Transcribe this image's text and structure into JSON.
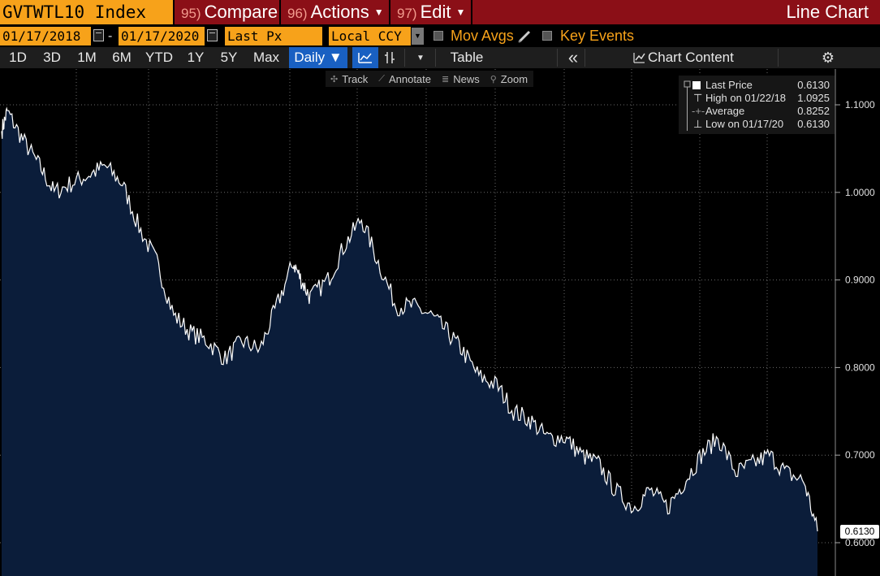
{
  "toolbar": {
    "ticker": "GVTWTL10 Index",
    "compare_num": "95)",
    "compare_label": "Compare",
    "actions_num": "96)",
    "actions_label": "Actions",
    "edit_num": "97)",
    "edit_label": "Edit",
    "title": "Line Chart"
  },
  "controls": {
    "start_date": "01/17/2018",
    "end_date": "01/17/2020",
    "date_separator": "-",
    "field": "Last Px",
    "currency": "Local CCY",
    "mov_avgs_label": "Mov Avgs",
    "key_events_label": "Key Events"
  },
  "periods": [
    "1D",
    "3D",
    "1M",
    "6M",
    "YTD",
    "1Y",
    "5Y",
    "Max"
  ],
  "frequency": "Daily ▼",
  "table_label": "Table",
  "chart_content_label": "Chart Content",
  "chart_tools": {
    "track": "Track",
    "annotate": "Annotate",
    "news": "News",
    "zoom": "Zoom"
  },
  "legend": {
    "last_label": "Last Price",
    "last_value": "0.6130",
    "high_label": "High on 01/22/18",
    "high_value": "1.0925",
    "avg_label": "Average",
    "avg_value": "0.8252",
    "low_label": "Low on 01/17/20",
    "low_value": "0.6130"
  },
  "price_tag": "0.6130",
  "colors": {
    "orange": "#f7a21a",
    "red": "#8b0f17",
    "area_fill": "#0b1d3a",
    "line": "#ffffff",
    "active_blue": "#1960c2"
  },
  "chart_data": {
    "type": "area",
    "x_range": [
      "01/17/2018",
      "01/17/2020"
    ],
    "y_ticks": [
      "1.1000",
      "1.0000",
      "0.9000",
      "0.8000",
      "0.7000",
      "0.6000"
    ],
    "ylim": [
      0.6,
      1.1
    ],
    "grid": true,
    "legend_position": "top-right",
    "series": [
      {
        "name": "Last Price",
        "x": [
          "2018-01-17",
          "2018-01-22",
          "2018-02-05",
          "2018-02-20",
          "2018-03-05",
          "2018-03-20",
          "2018-04-05",
          "2018-04-20",
          "2018-05-05",
          "2018-05-20",
          "2018-06-05",
          "2018-06-20",
          "2018-07-05",
          "2018-07-20",
          "2018-08-05",
          "2018-08-20",
          "2018-09-05",
          "2018-09-20",
          "2018-10-05",
          "2018-10-12",
          "2018-10-20",
          "2018-11-05",
          "2018-11-20",
          "2018-12-05",
          "2018-12-20",
          "2019-01-05",
          "2019-01-20",
          "2019-02-05",
          "2019-02-20",
          "2019-03-05",
          "2019-03-20",
          "2019-04-05",
          "2019-04-20",
          "2019-05-05",
          "2019-05-20",
          "2019-06-05",
          "2019-06-20",
          "2019-07-05",
          "2019-07-20",
          "2019-08-05",
          "2019-08-20",
          "2019-09-05",
          "2019-09-20",
          "2019-10-05",
          "2019-10-20",
          "2019-11-05",
          "2019-11-20",
          "2019-12-05",
          "2019-12-20",
          "2020-01-05",
          "2020-01-17"
        ],
        "values": [
          1.07,
          1.0925,
          1.06,
          1.03,
          1.0,
          1.01,
          1.02,
          1.03,
          1.01,
          0.96,
          0.92,
          0.86,
          0.84,
          0.83,
          0.81,
          0.83,
          0.82,
          0.87,
          0.92,
          0.9,
          0.88,
          0.9,
          0.94,
          0.97,
          0.92,
          0.87,
          0.87,
          0.86,
          0.84,
          0.82,
          0.79,
          0.78,
          0.75,
          0.74,
          0.72,
          0.72,
          0.7,
          0.69,
          0.66,
          0.64,
          0.66,
          0.64,
          0.67,
          0.7,
          0.72,
          0.68,
          0.69,
          0.7,
          0.68,
          0.67,
          0.613
        ]
      }
    ]
  }
}
